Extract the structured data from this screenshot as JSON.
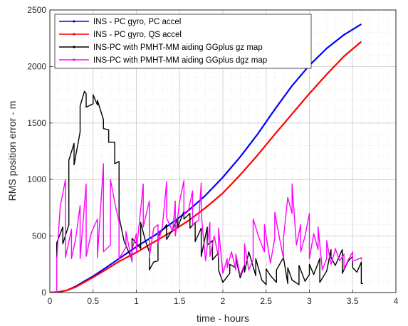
{
  "chart_data": {
    "type": "line",
    "title": "",
    "xlabel": "time - hours",
    "ylabel": "RMS position error - m",
    "xlim": [
      0,
      4
    ],
    "ylim": [
      0,
      2500
    ],
    "xticks": [
      "0",
      "0.5",
      "1",
      "1.5",
      "2",
      "2.5",
      "3",
      "3.5",
      "4"
    ],
    "yticks": [
      "0",
      "500",
      "1000",
      "1500",
      "2000",
      "2500"
    ],
    "grid": "dotted",
    "legend_position": "top-left",
    "series": [
      {
        "name": "INS - PC gyro, PC accel",
        "color": "#0000ff",
        "x": [
          0,
          0.1,
          0.2,
          0.3,
          0.4,
          0.5,
          0.6,
          0.8,
          1.0,
          1.2,
          1.4,
          1.6,
          1.8,
          2.0,
          2.2,
          2.4,
          2.6,
          2.8,
          3.0,
          3.2,
          3.4,
          3.6
        ],
        "y": [
          0,
          5,
          20,
          55,
          100,
          145,
          195,
          300,
          405,
          500,
          610,
          725,
          860,
          1020,
          1200,
          1400,
          1620,
          1830,
          2010,
          2160,
          2280,
          2375
        ]
      },
      {
        "name": "INS - PC gyro, QS accel",
        "color": "#ff0000",
        "x": [
          0,
          0.1,
          0.2,
          0.3,
          0.4,
          0.5,
          0.6,
          0.8,
          1.0,
          1.2,
          1.4,
          1.6,
          1.8,
          2.0,
          2.2,
          2.4,
          2.6,
          2.8,
          3.0,
          3.2,
          3.4,
          3.6
        ],
        "y": [
          0,
          5,
          20,
          50,
          92,
          135,
          180,
          275,
          355,
          445,
          535,
          635,
          750,
          880,
          1040,
          1215,
          1400,
          1580,
          1760,
          1930,
          2090,
          2220
        ]
      },
      {
        "name": "INS-PC with PMHT-MM aiding GGplus gz map",
        "color": "#000000",
        "x": [
          0.08,
          0.08,
          0.15,
          0.15,
          0.22,
          0.22,
          0.28,
          0.28,
          0.35,
          0.35,
          0.4,
          0.42,
          0.42,
          0.5,
          0.5,
          0.55,
          0.55,
          0.62,
          0.62,
          0.68,
          0.68,
          0.75,
          0.75,
          0.8,
          0.8,
          0.86,
          0.95,
          0.95,
          1.05,
          1.05,
          1.1,
          1.15,
          1.15,
          1.2,
          1.25,
          1.25,
          1.35,
          1.35,
          1.42,
          1.48,
          1.48,
          1.55,
          1.55,
          1.62,
          1.62,
          1.68,
          1.68,
          1.75,
          1.75,
          1.82,
          1.82,
          1.88,
          1.88,
          1.95,
          1.95,
          2.0,
          2.08,
          2.08,
          2.15,
          2.15,
          2.2,
          2.25,
          2.25,
          2.3,
          2.38,
          2.38,
          2.45,
          2.5,
          2.5,
          2.55,
          2.62,
          2.62,
          2.7,
          2.75,
          2.75,
          2.8,
          2.88,
          2.88,
          2.95,
          3.0,
          3.0,
          3.05,
          3.12,
          3.12,
          3.2,
          3.25,
          3.25,
          3.3,
          3.38,
          3.38,
          3.45,
          3.5,
          3.5,
          3.55,
          3.6,
          3.6,
          3.62
        ],
        "y": [
          310,
          440,
          580,
          430,
          600,
          1170,
          1320,
          1130,
          1420,
          1650,
          1780,
          1760,
          1640,
          1670,
          1750,
          1660,
          1700,
          1530,
          1450,
          1440,
          1330,
          1330,
          1140,
          1160,
          670,
          450,
          290,
          480,
          390,
          620,
          470,
          360,
          200,
          270,
          280,
          500,
          600,
          470,
          560,
          660,
          580,
          720,
          650,
          700,
          570,
          620,
          450,
          570,
          320,
          580,
          420,
          460,
          290,
          350,
          200,
          90,
          170,
          250,
          220,
          310,
          130,
          240,
          180,
          360,
          150,
          300,
          110,
          70,
          210,
          150,
          90,
          200,
          310,
          80,
          220,
          110,
          70,
          240,
          100,
          160,
          250,
          160,
          300,
          90,
          190,
          380,
          310,
          240,
          380,
          170,
          280,
          320,
          220,
          180,
          270,
          80,
          80
        ]
      },
      {
        "name": "INS-PC with PMHT-MM aiding GGplus dgz map",
        "color": "#ff00ff",
        "x": [
          0.08,
          0.08,
          0.12,
          0.18,
          0.18,
          0.25,
          0.25,
          0.3,
          0.35,
          0.35,
          0.42,
          0.42,
          0.48,
          0.55,
          0.55,
          0.62,
          0.62,
          0.7,
          0.7,
          0.75,
          0.8,
          0.8,
          0.88,
          0.88,
          0.95,
          0.95,
          1.0,
          1.0,
          1.08,
          1.08,
          1.15,
          1.15,
          1.2,
          1.25,
          1.25,
          1.3,
          1.35,
          1.35,
          1.42,
          1.45,
          1.45,
          1.5,
          1.55,
          1.55,
          1.6,
          1.65,
          1.65,
          1.72,
          1.75,
          1.75,
          1.8,
          1.85,
          1.85,
          1.9,
          1.95,
          1.95,
          2.0,
          2.05,
          2.05,
          2.1,
          2.15,
          2.15,
          2.2,
          2.25,
          2.25,
          2.3,
          2.35,
          2.35,
          2.42,
          2.48,
          2.48,
          2.55,
          2.6,
          2.6,
          2.65,
          2.7,
          2.7,
          2.75,
          2.8,
          2.8,
          2.85,
          2.9,
          2.9,
          2.95,
          3.0,
          3.0,
          3.05,
          3.1,
          3.1,
          3.15,
          3.2,
          3.2,
          3.25,
          3.3,
          3.3,
          3.35,
          3.4,
          3.4,
          3.45,
          3.5,
          3.5,
          3.55,
          3.6,
          3.6
        ],
        "y": [
          0,
          290,
          760,
          1000,
          310,
          560,
          300,
          480,
          770,
          300,
          960,
          320,
          530,
          650,
          310,
          1140,
          360,
          420,
          1000,
          800,
          620,
          300,
          400,
          540,
          270,
          380,
          520,
          360,
          960,
          580,
          810,
          310,
          570,
          600,
          440,
          580,
          980,
          660,
          540,
          810,
          500,
          810,
          990,
          690,
          720,
          900,
          600,
          640,
          970,
          700,
          280,
          620,
          320,
          500,
          310,
          570,
          170,
          300,
          220,
          360,
          200,
          340,
          150,
          250,
          430,
          200,
          290,
          650,
          480,
          360,
          600,
          260,
          480,
          710,
          500,
          300,
          480,
          840,
          700,
          960,
          420,
          600,
          360,
          500,
          700,
          300,
          520,
          380,
          580,
          200,
          300,
          460,
          250,
          380,
          390,
          280,
          340,
          210,
          290,
          360,
          280,
          290,
          310,
          290
        ]
      }
    ]
  }
}
